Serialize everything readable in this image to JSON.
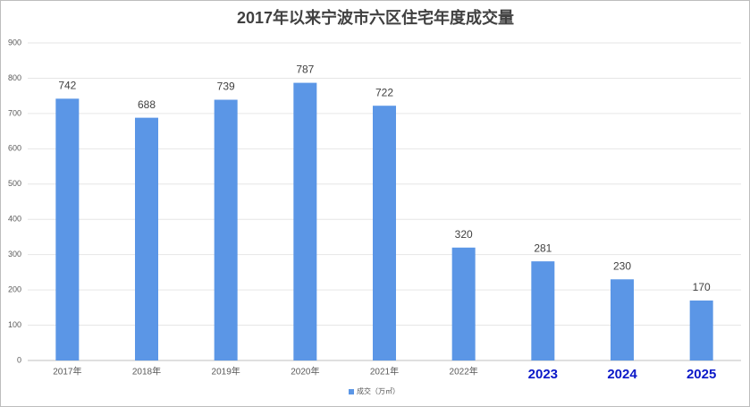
{
  "chart_data": {
    "type": "bar",
    "title": "2017年以来宁波市六区住宅年度成交量",
    "categories": [
      "2017年",
      "2018年",
      "2019年",
      "2020年",
      "2021年",
      "2022年",
      "2023",
      "2024",
      "2025"
    ],
    "series": [
      {
        "name": "成交（万㎡）",
        "color": "#5b96e6",
        "values": [
          742,
          688,
          739,
          787,
          722,
          320,
          281,
          230,
          170
        ]
      }
    ],
    "ylim": [
      0,
      900
    ],
    "yticks": [
      0,
      100,
      200,
      300,
      400,
      500,
      600,
      700,
      800,
      900
    ],
    "grid": true,
    "legend": "bottom"
  }
}
